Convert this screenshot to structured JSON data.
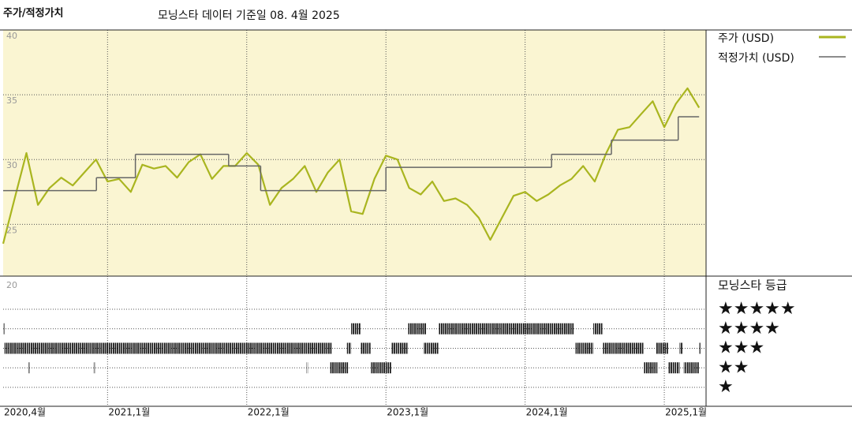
{
  "chart_data": {
    "type": "line",
    "title": "주가/적정가치",
    "subtitle": "모닝스타 데이터 기준일 08. 4월 2025",
    "xlim": [
      2020.25,
      2025.3
    ],
    "xticks": [
      {
        "value": 2020.25,
        "label": "2020,4월"
      },
      {
        "value": 2021,
        "label": "2021,1월"
      },
      {
        "value": 2022,
        "label": "2022,1월"
      },
      {
        "value": 2023,
        "label": "2023,1월"
      },
      {
        "value": 2024,
        "label": "2024,1월"
      },
      {
        "value": 2025,
        "label": "2025,1월"
      }
    ],
    "ylim": [
      21,
      40
    ],
    "yticks": [
      25,
      30,
      35,
      40
    ],
    "grid": true,
    "series": [
      {
        "name": "주가 (USD)",
        "color": "#a9b51f",
        "x": [
          2020.25,
          2020.333,
          2020.417,
          2020.5,
          2020.583,
          2020.667,
          2020.75,
          2020.833,
          2020.917,
          2021,
          2021.083,
          2021.167,
          2021.25,
          2021.333,
          2021.417,
          2021.5,
          2021.583,
          2021.667,
          2021.75,
          2021.833,
          2021.917,
          2022,
          2022.083,
          2022.167,
          2022.25,
          2022.333,
          2022.417,
          2022.5,
          2022.583,
          2022.667,
          2022.75,
          2022.833,
          2022.917,
          2023,
          2023.083,
          2023.167,
          2023.25,
          2023.333,
          2023.417,
          2023.5,
          2023.583,
          2023.667,
          2023.75,
          2023.833,
          2023.917,
          2024,
          2024.083,
          2024.167,
          2024.25,
          2024.333,
          2024.417,
          2024.5,
          2024.583,
          2024.667,
          2024.75,
          2024.833,
          2024.917,
          2025,
          2025.083,
          2025.167,
          2025.25
        ],
        "values": [
          23.5,
          27,
          30.5,
          26.5,
          27.8,
          28.6,
          28,
          29,
          30,
          28.3,
          28.5,
          27.5,
          29.6,
          29.3,
          29.5,
          28.6,
          29.8,
          30.4,
          28.5,
          29.5,
          29.5,
          30.5,
          29.6,
          26.5,
          27.8,
          28.5,
          29.5,
          27.5,
          29,
          30,
          26,
          25.8,
          28.5,
          30.3,
          30,
          27.8,
          27.3,
          28.3,
          26.8,
          27,
          26.5,
          25.5,
          23.8,
          25.5,
          27.2,
          27.5,
          26.8,
          27.3,
          28,
          28.5,
          29.5,
          28.3,
          30.5,
          32.3,
          32.5,
          33.5,
          34.5,
          32.5,
          34.3,
          35.5,
          34
        ]
      },
      {
        "name": "적정가치 (USD)",
        "color": "#666666",
        "step": true,
        "x": [
          2020.25,
          2020.92,
          2021.2,
          2021.87,
          2022.1,
          2023.0,
          2024.19,
          2024.62,
          2025.1
        ],
        "x_end": 2025.25,
        "values": [
          27.6,
          28.6,
          30.4,
          29.5,
          27.6,
          29.4,
          30.4,
          31.5,
          33.3
        ]
      }
    ],
    "rating": {
      "title": "모닝스타 등급",
      "panel_label": "20",
      "star_labels": [
        "★★★★★",
        "★★★★",
        "★★★",
        "★★",
        "★"
      ],
      "star_values": [
        5,
        4,
        3,
        2,
        1
      ],
      "segments": [
        {
          "start": 2020.25,
          "end": 2020.26,
          "stars": 4
        },
        {
          "start": 2022.75,
          "end": 2022.82,
          "stars": 4
        },
        {
          "start": 2023.16,
          "end": 2023.29,
          "stars": 4
        },
        {
          "start": 2023.38,
          "end": 2024.35,
          "stars": 4
        },
        {
          "start": 2024.49,
          "end": 2024.56,
          "stars": 4
        },
        {
          "start": 2020.26,
          "end": 2022.61,
          "stars": 3
        },
        {
          "start": 2022.72,
          "end": 2022.75,
          "stars": 3
        },
        {
          "start": 2022.82,
          "end": 2022.89,
          "stars": 3
        },
        {
          "start": 2023.04,
          "end": 2023.16,
          "stars": 3
        },
        {
          "start": 2023.27,
          "end": 2023.38,
          "stars": 3
        },
        {
          "start": 2024.36,
          "end": 2024.49,
          "stars": 3
        },
        {
          "start": 2024.56,
          "end": 2024.85,
          "stars": 3
        },
        {
          "start": 2024.94,
          "end": 2025.03,
          "stars": 3
        },
        {
          "start": 2025.11,
          "end": 2025.13,
          "stars": 3
        },
        {
          "start": 2025.25,
          "end": 2025.255,
          "stars": 3
        },
        {
          "start": 2020.43,
          "end": 2020.435,
          "stars": 2
        },
        {
          "start": 2020.9,
          "end": 2020.905,
          "stars": 2
        },
        {
          "start": 2022.43,
          "end": 2022.435,
          "stars": 2
        },
        {
          "start": 2022.6,
          "end": 2022.73,
          "stars": 2
        },
        {
          "start": 2022.89,
          "end": 2023.04,
          "stars": 2
        },
        {
          "start": 2024.85,
          "end": 2024.95,
          "stars": 2
        },
        {
          "start": 2025.03,
          "end": 2025.11,
          "stars": 2
        },
        {
          "start": 2025.14,
          "end": 2025.25,
          "stars": 2
        }
      ]
    }
  }
}
